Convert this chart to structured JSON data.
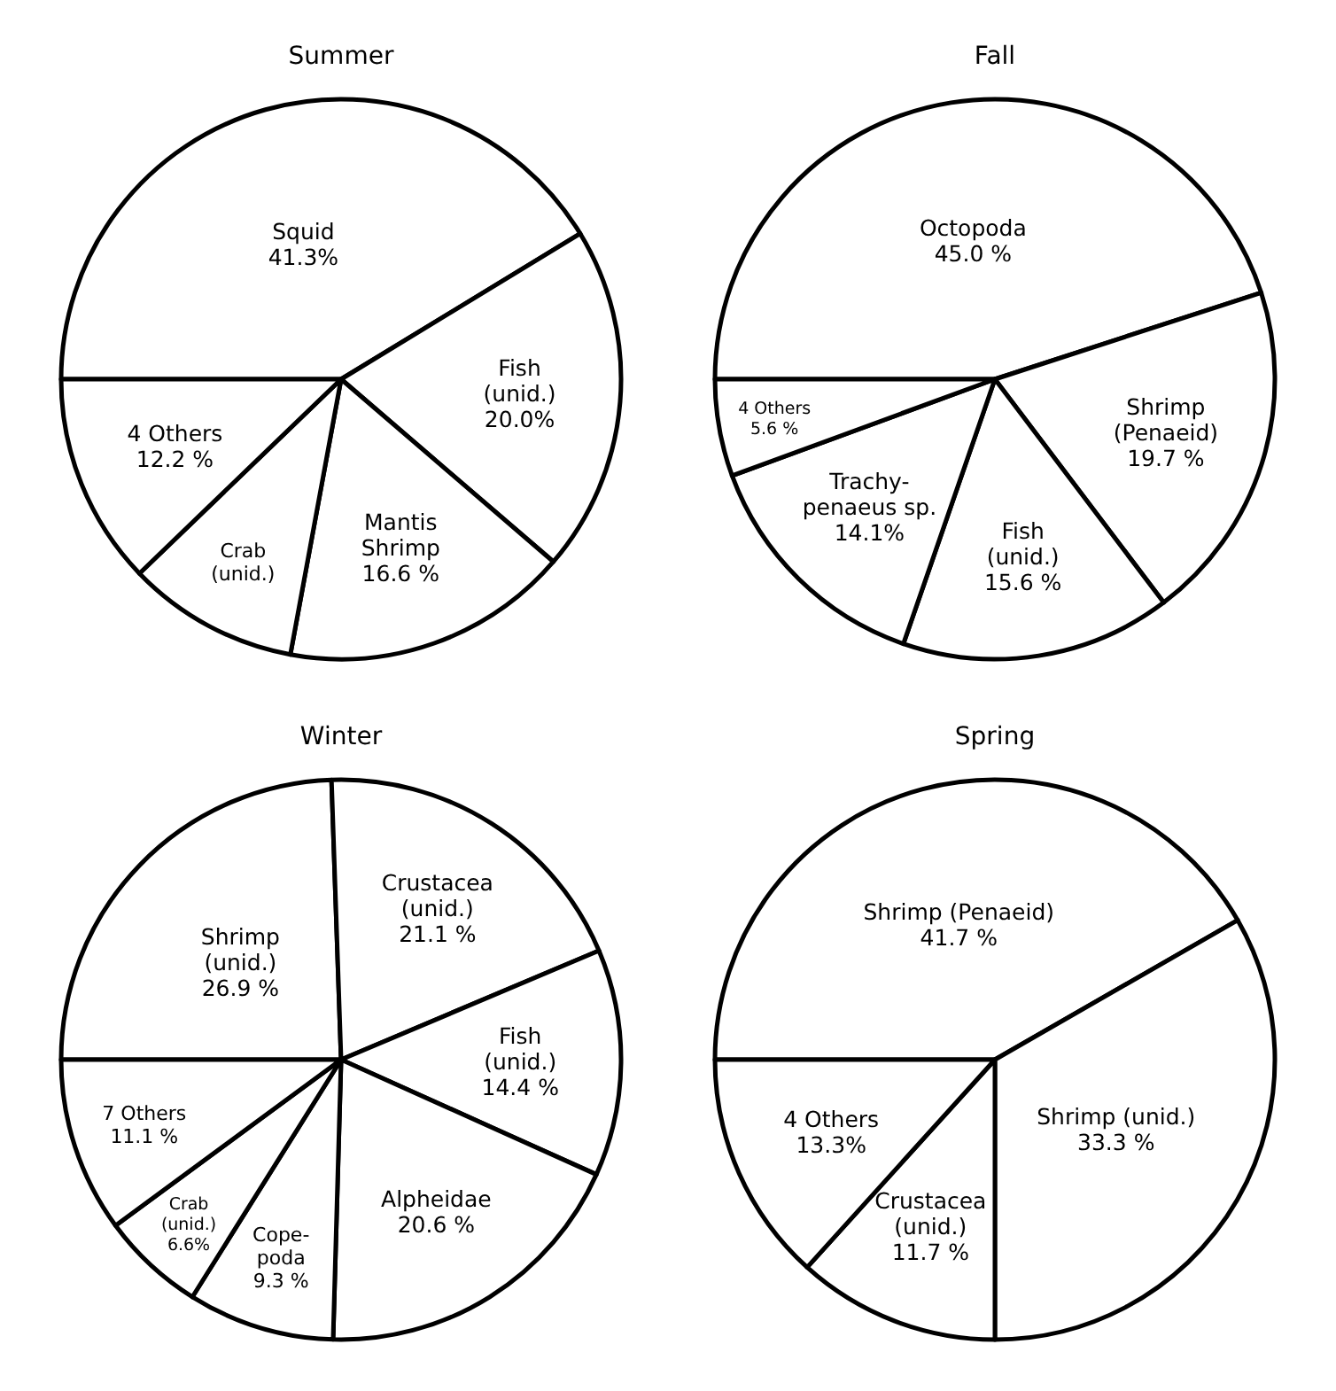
{
  "chart_data": [
    {
      "type": "pie",
      "title": "Summer",
      "categories": [
        "Squid",
        "Fish (unid.)",
        "Mantis Shrimp",
        "Crab (unid.)",
        "4 Others"
      ],
      "values": [
        41.3,
        20.0,
        16.6,
        9.9,
        12.2
      ],
      "colors": [
        "#ffffff",
        "#ffffff",
        "#ffffff",
        "#ffffff",
        "#ffffff"
      ],
      "value_labels": [
        "41.3%",
        "20.0%",
        "16.6 %",
        null,
        "12.2 %"
      ]
    },
    {
      "type": "pie",
      "title": "Fall",
      "categories": [
        "Octopoda",
        "Shrimp (Penaeid)",
        "Fish (unid.)",
        "Trachy-penaeus sp.",
        "4 Others"
      ],
      "values": [
        45.0,
        19.7,
        15.6,
        14.1,
        5.6
      ],
      "colors": [
        "#ffffff",
        "#ffffff",
        "#ffffff",
        "#ffffff",
        "#ffffff"
      ],
      "value_labels": [
        "45.0 %",
        "19.7 %",
        "15.6 %",
        "14.1%",
        "5.6 %"
      ]
    },
    {
      "type": "pie",
      "title": "Winter",
      "categories": [
        "Shrimp (unid.)",
        "Crustacea (unid.)",
        "Fish (unid.)",
        "Alpheidae",
        "Cope-poda",
        "Crab (unid.)",
        "7 Others"
      ],
      "values": [
        26.9,
        21.1,
        14.4,
        20.6,
        9.3,
        6.6,
        11.1
      ],
      "colors": [
        "#ffffff",
        "#ffffff",
        "#ffffff",
        "#ffffff",
        "#ffffff",
        "#ffffff",
        "#ffffff"
      ],
      "value_labels": [
        "26.9 %",
        "21.1 %",
        "14.4 %",
        "20.6 %",
        "9.3 %",
        "6.6%",
        "11.1 %"
      ]
    },
    {
      "type": "pie",
      "title": "Spring",
      "categories": [
        "Shrimp (Penaeid)",
        "Shrimp (unid.)",
        "Crustacea (unid.)",
        "4 Others"
      ],
      "values": [
        41.7,
        33.3,
        11.7,
        13.3
      ],
      "colors": [
        "#ffffff",
        "#ffffff",
        "#ffffff",
        "#ffffff"
      ],
      "value_labels": [
        "41.7 %",
        "33.3 %",
        "11.7 %",
        "13.3%"
      ]
    }
  ]
}
